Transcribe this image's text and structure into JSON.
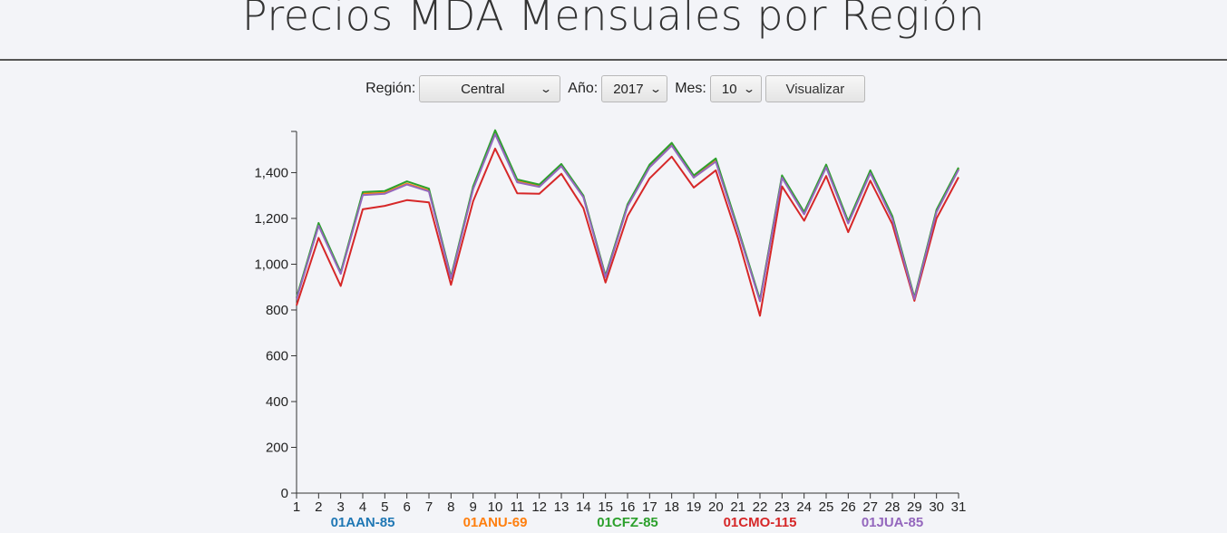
{
  "header": {
    "title": "Precios MDA Mensuales por Región"
  },
  "controls": {
    "region_label": "Región:",
    "region_value": "Central",
    "year_label": "Año:",
    "year_value": "2017",
    "month_label": "Mes:",
    "month_value": "10",
    "submit_label": "Visualizar"
  },
  "chart_data": {
    "type": "line",
    "title": "",
    "xlabel": "",
    "ylabel": "",
    "x": [
      1,
      2,
      3,
      4,
      5,
      6,
      7,
      8,
      9,
      10,
      11,
      12,
      13,
      14,
      15,
      16,
      17,
      18,
      19,
      20,
      21,
      22,
      23,
      24,
      25,
      26,
      27,
      28,
      29,
      30,
      31
    ],
    "ylim": [
      0,
      1580
    ],
    "yticks": [
      0,
      200,
      400,
      600,
      800,
      1000,
      1200,
      1400
    ],
    "grid": false,
    "legend_position": "bottom",
    "series": [
      {
        "name": "01AAN-85",
        "color": "#1f77b4",
        "values": [
          850,
          1170,
          960,
          1305,
          1310,
          1350,
          1320,
          940,
          1330,
          1570,
          1360,
          1340,
          1430,
          1295,
          945,
          1255,
          1425,
          1520,
          1380,
          1450,
          1150,
          840,
          1380,
          1220,
          1425,
          1180,
          1400,
          1200,
          850,
          1230,
          1415
        ]
      },
      {
        "name": "01ANU-69",
        "color": "#ff7f0e",
        "values": [
          852,
          1172,
          962,
          1308,
          1312,
          1352,
          1322,
          942,
          1332,
          1572,
          1362,
          1342,
          1432,
          1297,
          947,
          1257,
          1427,
          1522,
          1382,
          1452,
          1152,
          842,
          1382,
          1222,
          1427,
          1182,
          1402,
          1202,
          852,
          1232,
          1417
        ]
      },
      {
        "name": "01CFZ-85",
        "color": "#2ca02c",
        "values": [
          855,
          1180,
          965,
          1315,
          1320,
          1362,
          1330,
          945,
          1340,
          1585,
          1370,
          1348,
          1438,
          1300,
          950,
          1262,
          1435,
          1530,
          1388,
          1462,
          1158,
          845,
          1388,
          1228,
          1435,
          1188,
          1410,
          1210,
          855,
          1238,
          1422
        ]
      },
      {
        "name": "01CMO-115",
        "color": "#d62728",
        "values": [
          820,
          1115,
          905,
          1240,
          1255,
          1280,
          1270,
          910,
          1275,
          1505,
          1310,
          1308,
          1395,
          1245,
          920,
          1210,
          1375,
          1470,
          1335,
          1410,
          1115,
          775,
          1340,
          1190,
          1385,
          1140,
          1365,
          1175,
          840,
          1200,
          1380
        ]
      },
      {
        "name": "01JUA-85",
        "color": "#9467bd",
        "values": [
          848,
          1168,
          958,
          1302,
          1308,
          1348,
          1318,
          938,
          1328,
          1568,
          1358,
          1338,
          1428,
          1293,
          943,
          1253,
          1423,
          1518,
          1378,
          1448,
          1148,
          838,
          1378,
          1218,
          1423,
          1178,
          1398,
          1198,
          848,
          1228,
          1413
        ]
      }
    ]
  }
}
